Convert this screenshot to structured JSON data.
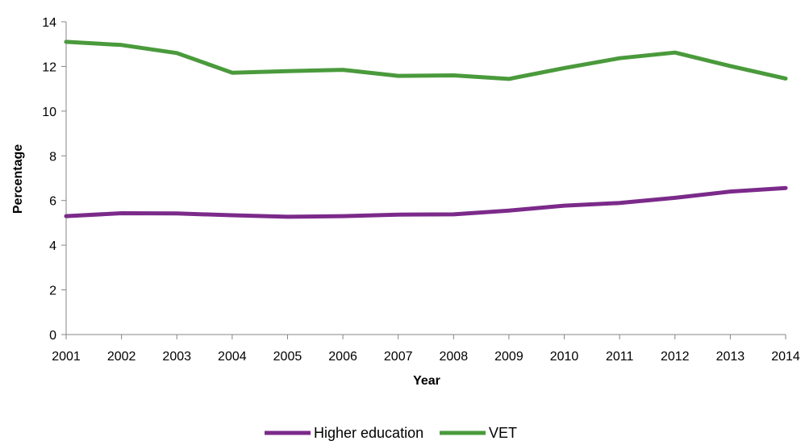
{
  "chart_data": {
    "type": "line",
    "title": "",
    "xlabel": "Year",
    "ylabel": "Percentage",
    "categories": [
      "2001",
      "2002",
      "2003",
      "2004",
      "2005",
      "2006",
      "2007",
      "2008",
      "2009",
      "2010",
      "2011",
      "2012",
      "2013",
      "2014"
    ],
    "ylim": [
      0,
      14
    ],
    "yticks": [
      "0",
      "2",
      "4",
      "6",
      "8",
      "10",
      "12",
      "14"
    ],
    "grid": false,
    "legend_position": "bottom",
    "series": [
      {
        "name": "Higher education",
        "color": "#7B2A8A",
        "values": [
          5.3,
          5.43,
          5.42,
          5.34,
          5.27,
          5.3,
          5.37,
          5.38,
          5.55,
          5.77,
          5.89,
          6.12,
          6.4,
          6.56
        ]
      },
      {
        "name": "VET",
        "color": "#4A9A3C",
        "values": [
          13.1,
          12.96,
          12.6,
          11.72,
          11.79,
          11.85,
          11.58,
          11.6,
          11.44,
          11.93,
          12.37,
          12.62,
          12.02,
          11.46
        ]
      }
    ]
  }
}
